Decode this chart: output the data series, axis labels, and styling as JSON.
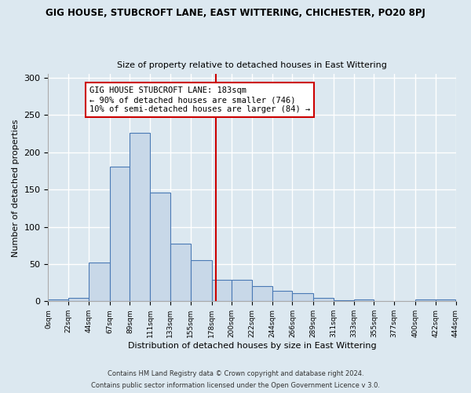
{
  "title1": "GIG HOUSE, STUBCROFT LANE, EAST WITTERING, CHICHESTER, PO20 8PJ",
  "title2": "Size of property relative to detached houses in East Wittering",
  "xlabel": "Distribution of detached houses by size in East Wittering",
  "ylabel": "Number of detached properties",
  "bar_color": "#c8d8e8",
  "bar_edge_color": "#4a7ab5",
  "background_color": "#dce8f0",
  "fig_color": "#dce8f0",
  "grid_color": "#ffffff",
  "vline_x": 183,
  "vline_color": "#cc0000",
  "annotation_text": "GIG HOUSE STUBCROFT LANE: 183sqm\n← 90% of detached houses are smaller (746)\n10% of semi-detached houses are larger (84) →",
  "annotation_box_color": "#ffffff",
  "annotation_border_color": "#cc0000",
  "bin_edges": [
    0,
    22,
    44,
    67,
    89,
    111,
    133,
    155,
    178,
    200,
    222,
    244,
    266,
    289,
    311,
    333,
    355,
    377,
    400,
    422,
    444
  ],
  "bin_heights": [
    2,
    5,
    52,
    181,
    226,
    146,
    77,
    55,
    29,
    29,
    20,
    14,
    11,
    5,
    1,
    2,
    0,
    0,
    2,
    2
  ],
  "tick_labels": [
    "0sqm",
    "22sqm",
    "44sqm",
    "67sqm",
    "89sqm",
    "111sqm",
    "133sqm",
    "155sqm",
    "178sqm",
    "200sqm",
    "222sqm",
    "244sqm",
    "266sqm",
    "289sqm",
    "311sqm",
    "333sqm",
    "355sqm",
    "377sqm",
    "400sqm",
    "422sqm",
    "444sqm"
  ],
  "ylim": [
    0,
    305
  ],
  "yticks": [
    0,
    50,
    100,
    150,
    200,
    250,
    300
  ],
  "footer1": "Contains HM Land Registry data © Crown copyright and database right 2024.",
  "footer2": "Contains public sector information licensed under the Open Government Licence v 3.0."
}
